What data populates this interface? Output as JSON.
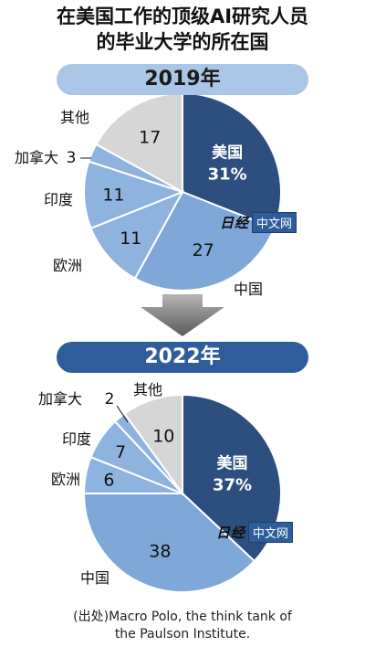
{
  "title_lines": [
    "在美国工作的顶级AI研究人员",
    "的毕业大学的所在国"
  ],
  "source_lines": [
    "(出处)Macro Polo, the think tank of",
    "the Paulson Institute."
  ],
  "watermark": {
    "logo": "日经",
    "box": "中文网"
  },
  "colors": {
    "usa": "#2c4f7f",
    "china": "#7fa8d8",
    "light": "#8fb3df",
    "other": "#d6d6d6",
    "banner_2019": "#a9c6e6",
    "banner_2022": "#2f5d9b"
  },
  "chart_data": [
    {
      "type": "pie",
      "banner": "2019年",
      "unit": "%",
      "slices": [
        {
          "label": "美国",
          "value": 31,
          "display": "31%"
        },
        {
          "label": "中国",
          "value": 27,
          "display": "27"
        },
        {
          "label": "欧洲",
          "value": 11,
          "display": "11"
        },
        {
          "label": "印度",
          "value": 11,
          "display": "11"
        },
        {
          "label": "加拿大",
          "value": 3,
          "display": "3"
        },
        {
          "label": "其他",
          "value": 17,
          "display": "17"
        }
      ]
    },
    {
      "type": "pie",
      "banner": "2022年",
      "unit": "%",
      "slices": [
        {
          "label": "美国",
          "value": 37,
          "display": "37%"
        },
        {
          "label": "中国",
          "value": 38,
          "display": "38"
        },
        {
          "label": "欧洲",
          "value": 6,
          "display": "6"
        },
        {
          "label": "印度",
          "value": 7,
          "display": "7"
        },
        {
          "label": "加拿大",
          "value": 2,
          "display": "2"
        },
        {
          "label": "其他",
          "value": 10,
          "display": "10"
        }
      ]
    }
  ]
}
